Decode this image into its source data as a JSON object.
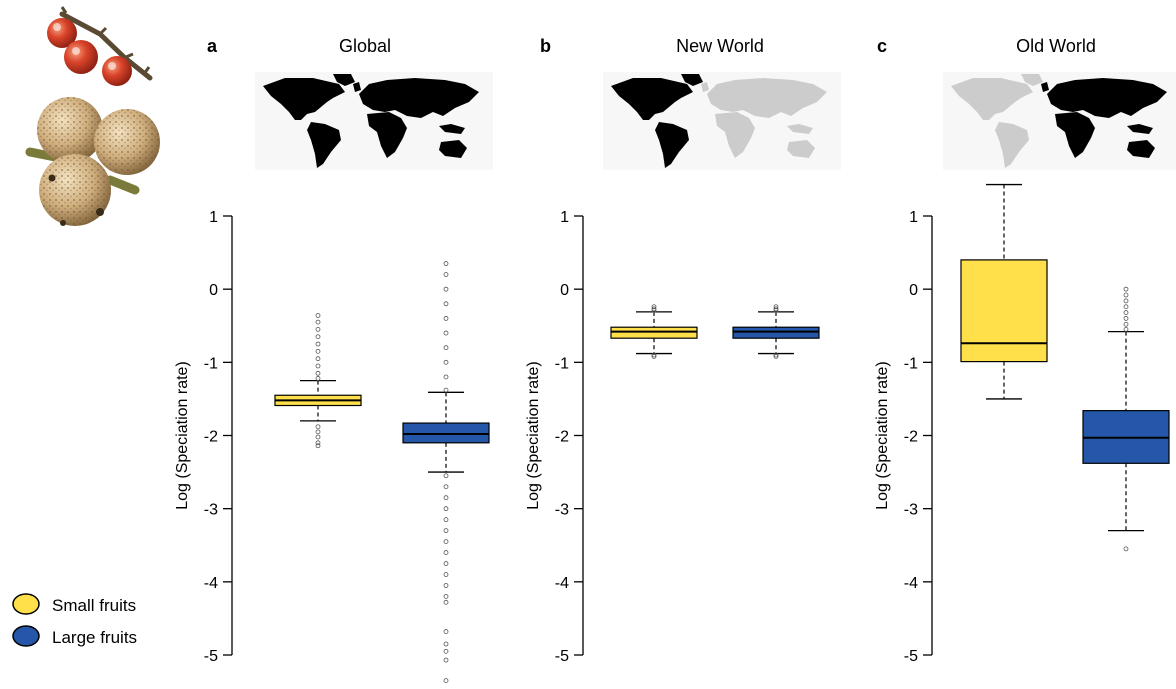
{
  "legend": {
    "items": [
      {
        "label": "Small fruits",
        "color": "#FFE04A"
      },
      {
        "label": "Large fruits",
        "color": "#2457A7"
      }
    ]
  },
  "chart_data": [
    {
      "type": "boxplot",
      "panel_letter": "a",
      "title": "Global",
      "map_highlight": "all",
      "ylabel": "Log (Speciation rate)",
      "ylim": [
        -5,
        1
      ],
      "yticks": [
        "1",
        "0",
        "-1",
        "-2",
        "-3",
        "-4",
        "-5"
      ],
      "ytick_values": [
        1,
        0,
        -1,
        -2,
        -3,
        -4,
        -5
      ],
      "series": [
        {
          "name": "Small fruits",
          "color": "#FFE04A",
          "whisker_low": -1.8,
          "q1": -1.59,
          "median": -1.52,
          "q3": -1.45,
          "whisker_high": -1.25,
          "outliers": [
            -0.36,
            -0.45,
            -0.55,
            -0.65,
            -0.75,
            -0.85,
            -0.95,
            -1.05,
            -1.15,
            -1.22,
            -1.88,
            -1.95,
            -2.02,
            -2.1,
            -2.14
          ]
        },
        {
          "name": "Large fruits",
          "color": "#2457A7",
          "whisker_low": -2.5,
          "q1": -2.1,
          "median": -1.98,
          "q3": -1.83,
          "whisker_high": -1.41,
          "outliers": [
            0.35,
            0.2,
            0.0,
            -0.2,
            -0.4,
            -0.6,
            -0.8,
            -1.0,
            -1.2,
            -1.38,
            -2.55,
            -2.7,
            -2.85,
            -3.0,
            -3.15,
            -3.3,
            -3.45,
            -3.6,
            -3.75,
            -3.9,
            -4.05,
            -4.2,
            -4.28,
            -4.68,
            -4.85,
            -4.95,
            -5.07,
            -5.35
          ]
        }
      ]
    },
    {
      "type": "boxplot",
      "panel_letter": "b",
      "title": "New World",
      "map_highlight": "new",
      "ylabel": "Log (Speciation rate)",
      "ylim": [
        -5,
        1
      ],
      "yticks": [
        "1",
        "0",
        "-1",
        "-2",
        "-3",
        "-4",
        "-5"
      ],
      "ytick_values": [
        1,
        0,
        -1,
        -2,
        -3,
        -4,
        -5
      ],
      "series": [
        {
          "name": "Small fruits",
          "color": "#FFE04A",
          "whisker_low": -0.88,
          "q1": -0.67,
          "median": -0.58,
          "q3": -0.52,
          "whisker_high": -0.31,
          "outliers": [
            -0.24,
            -0.27,
            -0.29,
            -0.9,
            -0.92
          ]
        },
        {
          "name": "Large fruits",
          "color": "#2457A7",
          "whisker_low": -0.88,
          "q1": -0.67,
          "median": -0.58,
          "q3": -0.52,
          "whisker_high": -0.31,
          "outliers": [
            -0.24,
            -0.27,
            -0.29,
            -0.9,
            -0.92
          ]
        }
      ]
    },
    {
      "type": "boxplot",
      "panel_letter": "c",
      "title": "Old World",
      "map_highlight": "old",
      "ylabel": "Log (Speciation rate)",
      "ylim": [
        -5,
        1
      ],
      "yticks": [
        "1",
        "0",
        "-1",
        "-2",
        "-3",
        "-4",
        "-5"
      ],
      "ytick_values": [
        1,
        0,
        -1,
        -2,
        -3,
        -4,
        -5
      ],
      "series": [
        {
          "name": "Small fruits",
          "color": "#FFE04A",
          "whisker_low": -1.5,
          "q1": -0.99,
          "median": -0.74,
          "q3": 0.4,
          "whisker_high": 1.43,
          "outliers": []
        },
        {
          "name": "Large fruits",
          "color": "#2457A7",
          "whisker_low": -3.3,
          "q1": -2.38,
          "median": -2.03,
          "q3": -1.66,
          "whisker_high": -0.58,
          "outliers": [
            0.0,
            -0.08,
            -0.16,
            -0.24,
            -0.32,
            -0.4,
            -0.48,
            -0.55,
            -3.55
          ]
        }
      ]
    }
  ]
}
